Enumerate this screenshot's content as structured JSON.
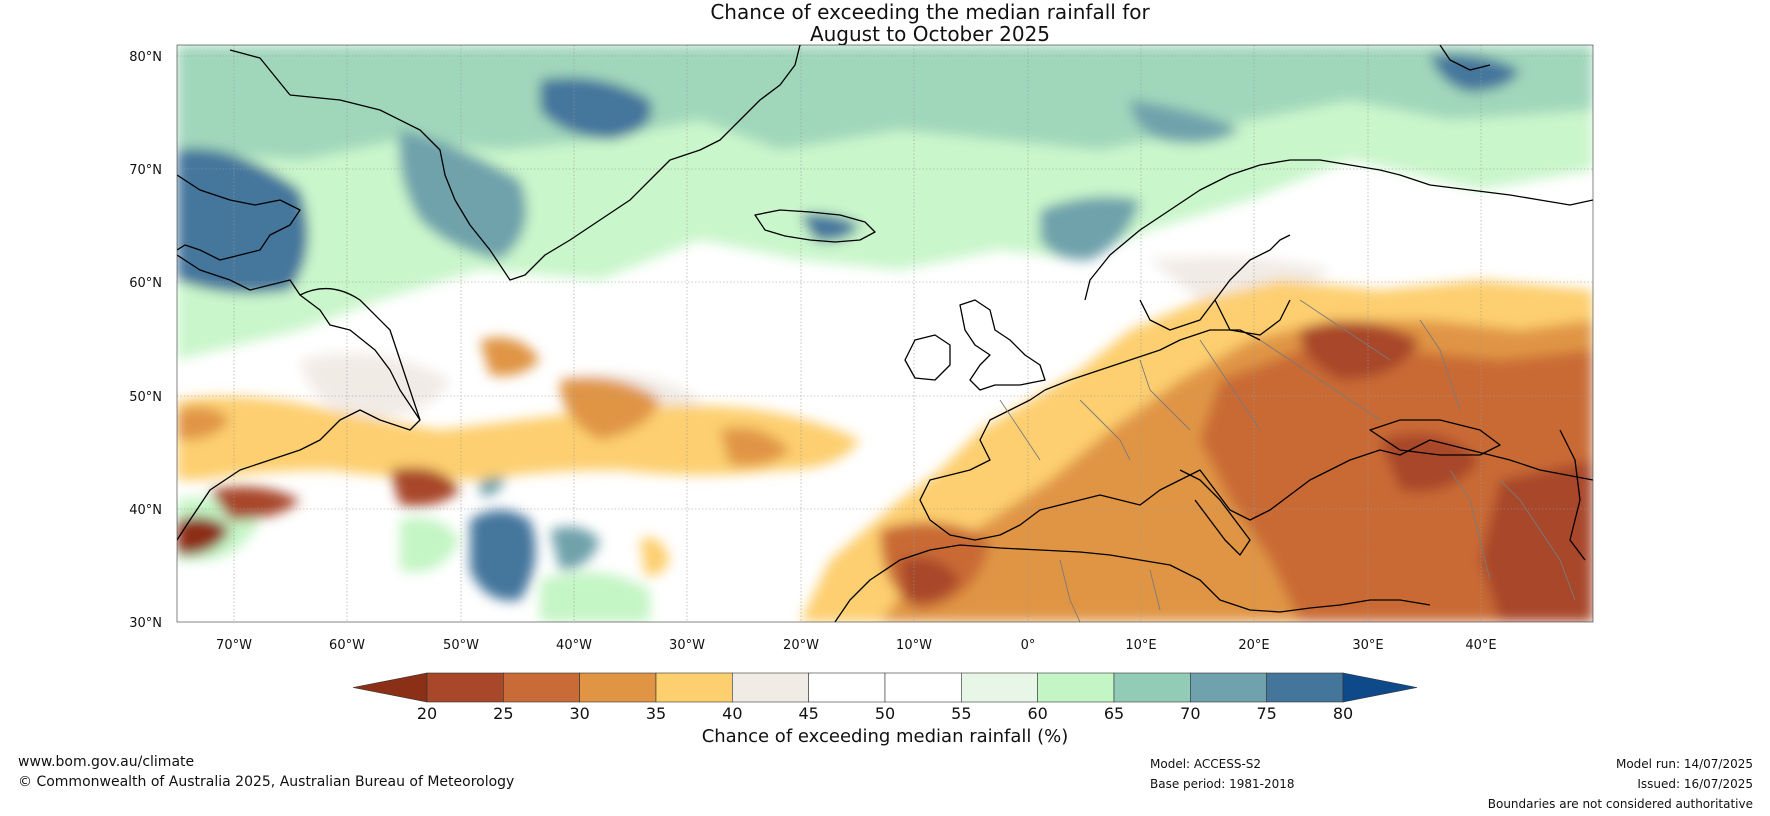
{
  "title": {
    "line1": "Chance of exceeding the median rainfall for",
    "line2": "August to October 2025"
  },
  "map": {
    "lat_labels": [
      "80°N",
      "70°N",
      "60°N",
      "50°N",
      "40°N",
      "30°N"
    ],
    "lon_labels": [
      "70°W",
      "60°W",
      "50°W",
      "40°W",
      "30°W",
      "20°W",
      "10°W",
      "0°",
      "10°E",
      "20°E",
      "30°E",
      "40°E"
    ],
    "lat_range": [
      30,
      81
    ],
    "lon_range": [
      -75,
      50
    ],
    "region": "North Atlantic and Europe"
  },
  "colorbar": {
    "title": "Chance of exceeding median rainfall (%)",
    "ticks": [
      "20",
      "25",
      "30",
      "35",
      "40",
      "45",
      "50",
      "55",
      "60",
      "65",
      "70",
      "75",
      "80"
    ],
    "colors": [
      "#8c2f17",
      "#a8472a",
      "#c96b36",
      "#e09545",
      "#fdcf6f",
      "#f1ebe6",
      "#ffffff",
      "#ffffff",
      "#e8f6e8",
      "#c4f5c5",
      "#93ccb6",
      "#6fa2ac",
      "#44769c",
      "#0e4a8a"
    ]
  },
  "footer": {
    "website": "www.bom.gov.au/climate",
    "copyright": "© Commonwealth of Australia 2025, Australian Bureau of Meteorology",
    "model": "Model: ACCESS-S2",
    "base_period": "Base period: 1981-2018",
    "model_run": "Model run: 14/07/2025",
    "issued": "Issued: 16/07/2025",
    "disclaimer": "Boundaries are not considered authoritative"
  }
}
